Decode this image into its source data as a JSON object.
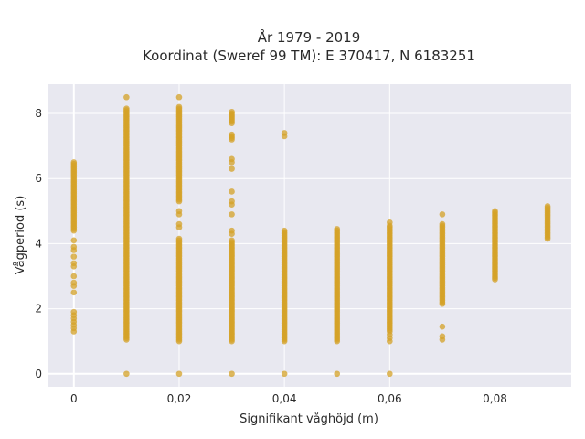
{
  "chart_data": {
    "type": "scatter",
    "title_line1": "År 1979 - 2019",
    "title_line2": "Koordinat (Sweref 99 TM): E 370417, N 6183251",
    "xlabel": "Signifikant våghöjd (m)",
    "ylabel": "Vågperiod (s)",
    "xlim": [
      -0.005,
      0.0945
    ],
    "ylim": [
      -0.4,
      8.9
    ],
    "grid": true,
    "colors": {
      "marker": "#d4a227",
      "plot_bg": "#e8e8f0"
    },
    "x_ticks": [
      {
        "value": 0,
        "label": "0"
      },
      {
        "value": 0.02,
        "label": "0,02"
      },
      {
        "value": 0.04,
        "label": "0,04"
      },
      {
        "value": 0.06,
        "label": "0,06"
      },
      {
        "value": 0.08,
        "label": "0,08"
      }
    ],
    "y_ticks": [
      {
        "value": 0,
        "label": "0"
      },
      {
        "value": 2,
        "label": "2"
      },
      {
        "value": 4,
        "label": "4"
      },
      {
        "value": 6,
        "label": "6"
      },
      {
        "value": 8,
        "label": "8"
      }
    ],
    "columns": [
      {
        "x": 0,
        "dense": [
          [
            4.4,
            6.5
          ]
        ],
        "points": [
          4.1,
          3.9,
          3.8,
          3.6,
          3.4,
          3.3,
          3.0,
          2.8,
          2.7,
          2.5,
          1.9,
          1.8,
          1.7,
          1.6,
          1.5,
          1.4,
          1.3
        ]
      },
      {
        "x": 0.01,
        "dense": [
          [
            1.05,
            8.15
          ]
        ],
        "points": [
          8.5,
          0.0
        ]
      },
      {
        "x": 0.02,
        "dense": [
          [
            5.3,
            8.2
          ],
          [
            1.0,
            4.15
          ]
        ],
        "points": [
          8.5,
          5.0,
          4.9,
          4.6,
          4.5,
          0.0
        ]
      },
      {
        "x": 0.03,
        "dense": [
          [
            7.7,
            8.05
          ],
          [
            7.2,
            7.35
          ],
          [
            1.0,
            4.1
          ]
        ],
        "points": [
          6.6,
          6.5,
          6.3,
          5.6,
          5.3,
          5.2,
          4.9,
          4.4,
          4.3,
          0.0
        ]
      },
      {
        "x": 0.04,
        "dense": [
          [
            1.0,
            4.4
          ]
        ],
        "points": [
          7.4,
          7.3,
          0.0
        ]
      },
      {
        "x": 0.05,
        "dense": [
          [
            1.0,
            4.45
          ]
        ],
        "points": [
          0.0
        ]
      },
      {
        "x": 0.06,
        "dense": [
          [
            1.3,
            4.55
          ]
        ],
        "points": [
          4.65,
          1.2,
          1.1,
          1.0,
          0.0
        ]
      },
      {
        "x": 0.07,
        "dense": [
          [
            2.15,
            4.6
          ]
        ],
        "points": [
          4.9,
          1.45,
          1.15,
          1.05
        ]
      },
      {
        "x": 0.08,
        "dense": [
          [
            2.9,
            5.0
          ]
        ],
        "points": []
      },
      {
        "x": 0.09,
        "dense": [
          [
            4.15,
            5.15
          ]
        ],
        "points": []
      }
    ]
  }
}
